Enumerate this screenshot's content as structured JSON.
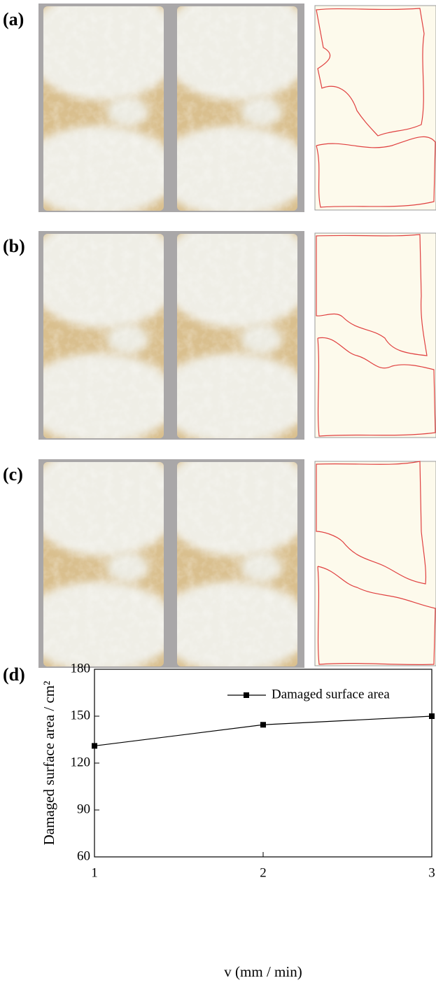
{
  "panel_labels": [
    "(a)",
    "(b)",
    "(c)"
  ],
  "chart_data": {
    "type": "line",
    "panel_label": "(d)",
    "x_label": "v (mm / min)",
    "y_label": "Damaged surface area / cm²",
    "x": [
      1,
      2,
      3
    ],
    "series": [
      {
        "name": "Damaged surface area",
        "color": "#000000",
        "values": [
          131,
          144.5,
          150
        ]
      }
    ],
    "xlim": [
      1,
      3
    ],
    "xticks": [
      1,
      2,
      3
    ],
    "ylim": [
      60,
      180
    ],
    "yticks": [
      60,
      90,
      120,
      150,
      180
    ],
    "legend": "upper right"
  }
}
